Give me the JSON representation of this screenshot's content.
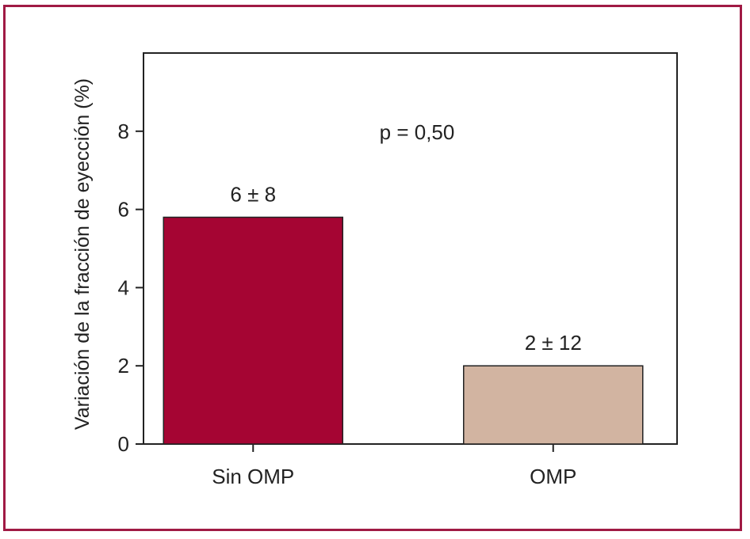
{
  "chart_data": {
    "type": "bar",
    "categories": [
      "Sin OMP",
      "OMP"
    ],
    "values": [
      5.8,
      2.0
    ],
    "data_labels": [
      "6 ± 8",
      "2 ± 12"
    ],
    "bar_colors": [
      "#a50533",
      "#d2b4a1"
    ],
    "frame_color": "#a01a44",
    "annotation": "p = 0,50",
    "ylabel": "Variación de la fracción de eyección (%)",
    "xlabel": "",
    "ylim": [
      0,
      10
    ],
    "yticks": [
      0,
      2,
      4,
      6,
      8
    ],
    "ytick_labels": [
      "0",
      "2",
      "4",
      "6",
      "8"
    ],
    "grid": false
  }
}
